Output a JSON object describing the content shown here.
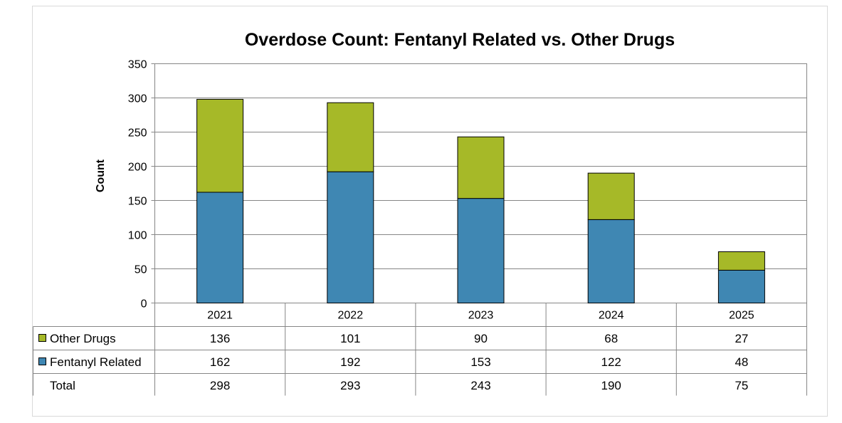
{
  "chart_data": {
    "type": "bar",
    "stacked": true,
    "title": "Overdose Count: Fentanyl Related vs. Other Drugs",
    "ylabel": "Count",
    "xlabel": "",
    "ylim": [
      0,
      350
    ],
    "yticks": [
      0,
      50,
      100,
      150,
      200,
      250,
      300,
      350
    ],
    "grid": true,
    "legend": "data-table",
    "categories": [
      "2021",
      "2022",
      "2023",
      "2024",
      "2025"
    ],
    "series": [
      {
        "name": "Fentanyl Related",
        "color": "#3F87B3",
        "values": [
          162,
          192,
          153,
          122,
          48
        ]
      },
      {
        "name": "Other Drugs",
        "color": "#A6B928",
        "values": [
          136,
          101,
          90,
          68,
          27
        ]
      }
    ],
    "table": {
      "rows": [
        {
          "label": "Other Drugs",
          "series": 1,
          "values": [
            136,
            101,
            90,
            68,
            27
          ]
        },
        {
          "label": "Fentanyl Related",
          "series": 0,
          "values": [
            162,
            192,
            153,
            122,
            48
          ]
        },
        {
          "label": "Total",
          "series": null,
          "values": [
            298,
            293,
            243,
            190,
            75
          ]
        }
      ]
    }
  }
}
